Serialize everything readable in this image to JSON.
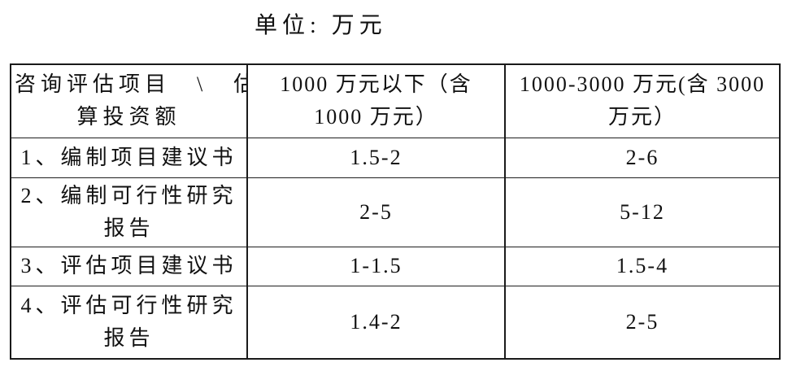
{
  "page": {
    "unit_label": "单位: 万元"
  },
  "table": {
    "header": {
      "col1_line1": "咨询评估项目　\\　估",
      "col1_line2": "算投资额",
      "col2_line1": "1000 万元以下（含",
      "col2_line2": "1000 万元）",
      "col3_line1": "1000-3000 万元(含 3000",
      "col3_line2": "万元）"
    },
    "rows": [
      {
        "label_line1": "1、编制项目建议书",
        "label_line2": "",
        "under_1000": "1.5-2",
        "from_1000_to_3000": "2-6"
      },
      {
        "label_line1": "2、编制可行性研究",
        "label_line2": "报告",
        "under_1000": "2-5",
        "from_1000_to_3000": "5-12"
      },
      {
        "label_line1": "3、评估项目建议书",
        "label_line2": "",
        "under_1000": "1-1.5",
        "from_1000_to_3000": "1.5-4"
      },
      {
        "label_line1": "4、评估可行性研究",
        "label_line2": "报告",
        "under_1000": "1.4-2",
        "from_1000_to_3000": "2-5"
      }
    ]
  }
}
